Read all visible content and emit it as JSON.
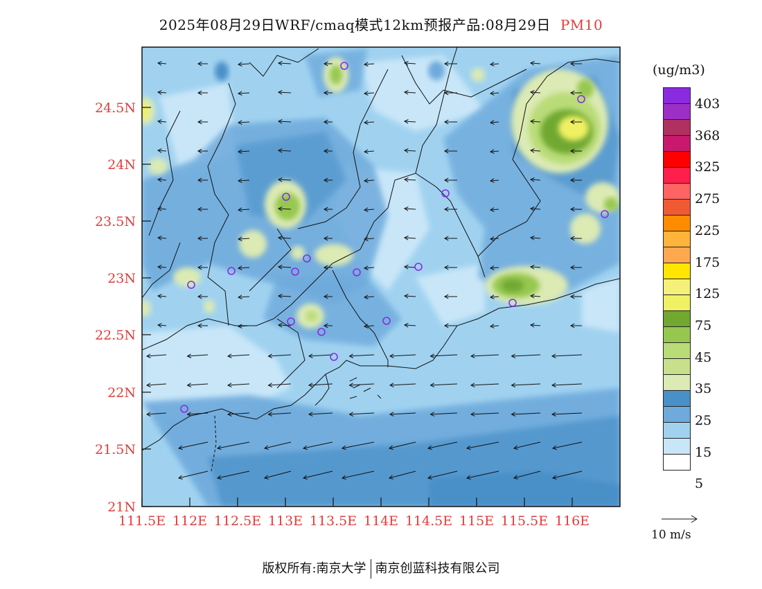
{
  "title": {
    "main": "2025年08月29日WRF/cmaq模式12km预报产品:08月29日",
    "product": "PM10"
  },
  "legend": {
    "unit": "(ug/m3)",
    "levels": [
      "403",
      "368",
      "325",
      "275",
      "225",
      "175",
      "125",
      "75",
      "45",
      "35",
      "25",
      "15",
      "5"
    ],
    "colors": [
      "#8a2be2",
      "#9b2fc6",
      "#b03060",
      "#c8196e",
      "#ff0000",
      "#ff1f4a",
      "#ff6464",
      "#f05a32",
      "#ff8c00",
      "#ffb43c",
      "#ffa850",
      "#ffe600",
      "#f5f07a",
      "#f0f064",
      "#70a830",
      "#96c850",
      "#b9dc78",
      "#c8e08c",
      "#dceab4",
      "#4a90c8",
      "#6eaadc",
      "#a0d2f0",
      "#c8e6f8",
      "#ffffff"
    ],
    "wind_ref": "10 m/s"
  },
  "map": {
    "lat_ticks": [
      "24.5N",
      "24N",
      "23.5N",
      "23N",
      "22.5N",
      "22N",
      "21.5N",
      "21N"
    ],
    "lon_ticks": [
      "111.5E",
      "112E",
      "112.5E",
      "113E",
      "113.5E",
      "114E",
      "114.5E",
      "115E",
      "115.5E",
      "116E"
    ],
    "tick_color": "#e23c3c"
  },
  "footer": {
    "left": "版权所有:南京大学",
    "right": "南京创蓝科技有限公司"
  }
}
